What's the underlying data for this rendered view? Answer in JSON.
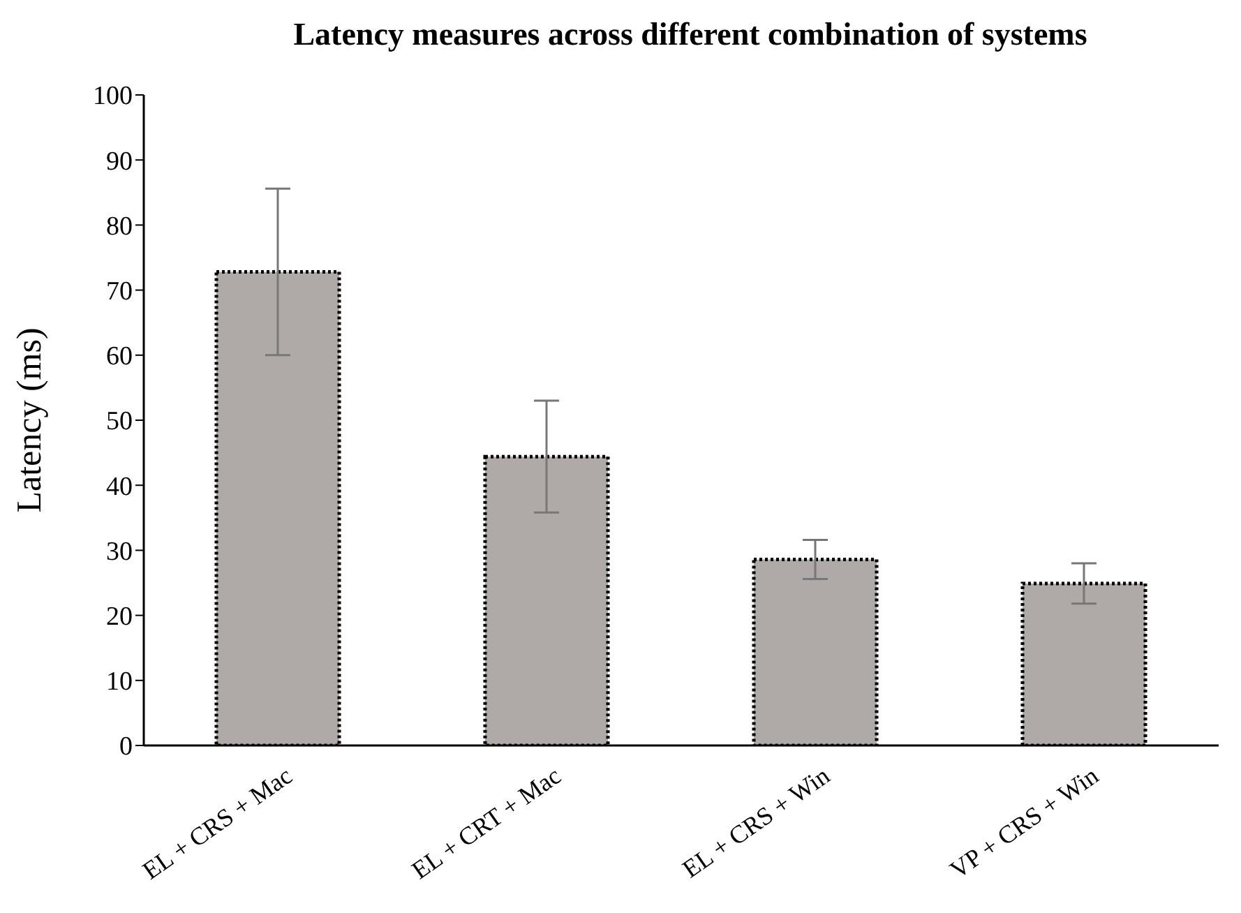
{
  "chart_data": {
    "type": "bar",
    "title": "Latency measures across different combination of systems",
    "ylabel": "Latency (ms)",
    "categories": [
      "EL + CRS + Mac",
      "EL + CRT + Mac",
      "EL + CRS + Win",
      "VP + CRS + Win"
    ],
    "values": [
      72.8,
      44.4,
      28.6,
      24.9
    ],
    "errors": [
      12.8,
      8.6,
      3,
      3.1
    ],
    "color": "#afaaa8",
    "line_style": "dotted",
    "ylim": [
      0,
      100
    ],
    "yticks": [
      0,
      10,
      20,
      30,
      40,
      50,
      60,
      70,
      80,
      90,
      100
    ],
    "grid": false
  }
}
